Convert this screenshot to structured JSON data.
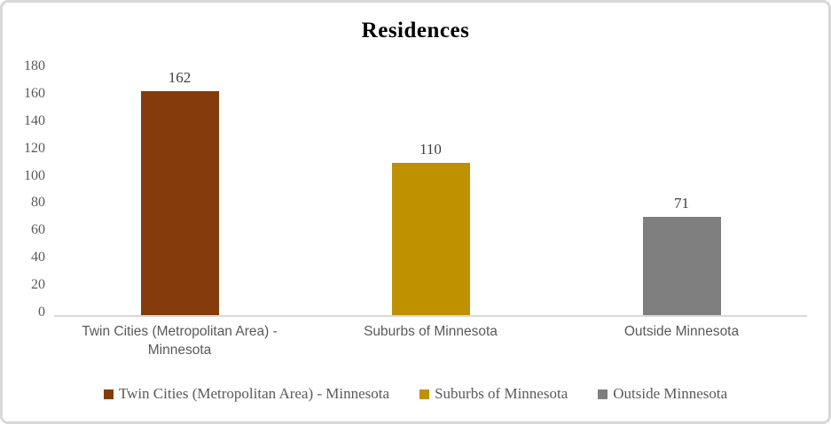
{
  "chart_data": {
    "type": "bar",
    "title": "Residences",
    "categories": [
      "Twin Cities (Metropolitan Area) - Minnesota",
      "Suburbs of Minnesota",
      "Outside Minnesota"
    ],
    "values": [
      162,
      110,
      71
    ],
    "data_labels": [
      "162",
      "110",
      "71"
    ],
    "bar_colors": [
      "#843C0C",
      "#BF9000",
      "#7F7F7F"
    ],
    "yticks": [
      180,
      160,
      140,
      120,
      100,
      80,
      60,
      40,
      20,
      0
    ],
    "ylim": [
      0,
      180
    ],
    "xlabel": "",
    "ylabel": "",
    "grid": false,
    "legend_position": "bottom",
    "legend": [
      "Twin Cities (Metropolitan Area) - Minnesota",
      "Suburbs of Minnesota",
      "Outside Minnesota"
    ],
    "axis_line_color": "#d9d9d9",
    "text_color": "#595959",
    "title_color": "#000000"
  }
}
